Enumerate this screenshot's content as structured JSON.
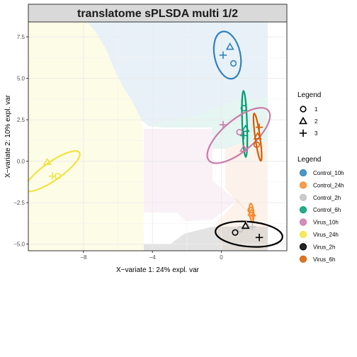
{
  "chart_data": {
    "type": "scatter",
    "title": "translatome sPLSDA multi 1/2",
    "xlabel": "X−variate 1: 24% expl. var",
    "ylabel": "X−variate 2: 10% expl. var",
    "xlim": [
      -11.2,
      3.8
    ],
    "ylim": [
      -5.4,
      8.4
    ],
    "x_ticks": [
      -8,
      -4,
      0
    ],
    "x_tick_labels": [
      "−8",
      "−4",
      "0"
    ],
    "y_ticks": [
      -5.0,
      -2.5,
      0.0,
      2.5,
      5.0,
      7.5
    ],
    "y_tick_labels": [
      "−5.0",
      "−2.5",
      "0.0",
      "2.5",
      "5.0",
      "7.5"
    ],
    "grid": true,
    "background_regions": true,
    "shape_legend": {
      "title": "Legend",
      "entries": [
        {
          "symbol": "circle",
          "label": "1"
        },
        {
          "symbol": "triangle",
          "label": "2"
        },
        {
          "symbol": "plus",
          "label": "3"
        }
      ]
    },
    "color_legend": {
      "title": "Legend",
      "position": "right",
      "entries": [
        {
          "label": "Control_10h",
          "color": "#3182BD"
        },
        {
          "label": "Control_24h",
          "color": "#F68B33"
        },
        {
          "label": "Control_2h",
          "color": "#C2C2C2"
        },
        {
          "label": "Control_6h",
          "color": "#009E73"
        },
        {
          "label": "Virus_10h",
          "color": "#CC79A7"
        },
        {
          "label": "Virus_24h",
          "color": "#F0E442"
        },
        {
          "label": "Virus_2h",
          "color": "#000000"
        },
        {
          "label": "Virus_6h",
          "color": "#D55E00"
        }
      ]
    },
    "series": [
      {
        "name": "Control_10h",
        "color": "#3182BD",
        "points": [
          {
            "x": 0.7,
            "y": 5.9,
            "shape": "circle"
          },
          {
            "x": 0.5,
            "y": 6.9,
            "shape": "triangle"
          },
          {
            "x": 0.1,
            "y": 6.4,
            "shape": "plus"
          }
        ],
        "ellipse": {
          "cx": 0.35,
          "cy": 6.4,
          "rx": 0.75,
          "ry": 1.45,
          "rot": 12
        }
      },
      {
        "name": "Control_24h",
        "color": "#F68B33",
        "points": [
          {
            "x": 1.7,
            "y": -2.95,
            "shape": "circle"
          },
          {
            "x": 1.75,
            "y": -3.1,
            "shape": "triangle"
          },
          {
            "x": 1.8,
            "y": -3.3,
            "shape": "plus"
          }
        ],
        "ellipse": {
          "cx": 1.75,
          "cy": -3.1,
          "rx": 0.12,
          "ry": 0.55,
          "rot": 5
        }
      },
      {
        "name": "Control_2h",
        "color": "#C2C2C2",
        "points": [
          {
            "x": 1.1,
            "y": -4.1,
            "shape": "circle"
          },
          {
            "x": 1.45,
            "y": -3.85,
            "shape": "triangle"
          },
          {
            "x": 1.8,
            "y": -3.95,
            "shape": "plus"
          }
        ],
        "ellipse": null
      },
      {
        "name": "Control_6h",
        "color": "#009E73",
        "points": [
          {
            "x": 1.3,
            "y": 3.2,
            "shape": "circle"
          },
          {
            "x": 1.4,
            "y": 1.95,
            "shape": "triangle"
          },
          {
            "x": 1.3,
            "y": 1.55,
            "shape": "plus"
          }
        ],
        "ellipse": {
          "cx": 1.35,
          "cy": 2.25,
          "rx": 0.14,
          "ry": 2.0,
          "rot": 2
        }
      },
      {
        "name": "Virus_10h",
        "color": "#CC79A7",
        "points": [
          {
            "x": 1.05,
            "y": 1.75,
            "shape": "circle"
          },
          {
            "x": 1.3,
            "y": 0.75,
            "shape": "triangle"
          },
          {
            "x": 0.1,
            "y": 2.2,
            "shape": "plus"
          }
        ],
        "ellipse": {
          "cx": 1.0,
          "cy": 1.55,
          "rx": 2.25,
          "ry": 0.95,
          "rot": 40
        }
      },
      {
        "name": "Virus_24h",
        "color": "#F0E442",
        "points": [
          {
            "x": -9.5,
            "y": -0.9,
            "shape": "circle"
          },
          {
            "x": -10.1,
            "y": -0.05,
            "shape": "triangle"
          },
          {
            "x": -9.8,
            "y": -0.9,
            "shape": "plus"
          }
        ],
        "ellipse": {
          "cx": -9.8,
          "cy": -0.6,
          "rx": 1.9,
          "ry": 0.55,
          "rot": 35
        }
      },
      {
        "name": "Virus_2h",
        "color": "#000000",
        "points": [
          {
            "x": 0.8,
            "y": -4.3,
            "shape": "circle"
          },
          {
            "x": 1.4,
            "y": -3.9,
            "shape": "triangle"
          },
          {
            "x": 2.2,
            "y": -4.6,
            "shape": "plus"
          }
        ],
        "ellipse": {
          "cx": 1.6,
          "cy": -4.4,
          "rx": 1.95,
          "ry": 0.75,
          "rot": -5
        }
      },
      {
        "name": "Virus_6h",
        "color": "#D55E00",
        "points": [
          {
            "x": 2.05,
            "y": 1.0,
            "shape": "circle"
          },
          {
            "x": 2.1,
            "y": 1.5,
            "shape": "triangle"
          },
          {
            "x": 2.2,
            "y": 2.05,
            "shape": "plus"
          }
        ],
        "ellipse": {
          "cx": 2.1,
          "cy": 1.45,
          "rx": 0.14,
          "ry": 1.45,
          "rot": 8
        }
      }
    ]
  }
}
